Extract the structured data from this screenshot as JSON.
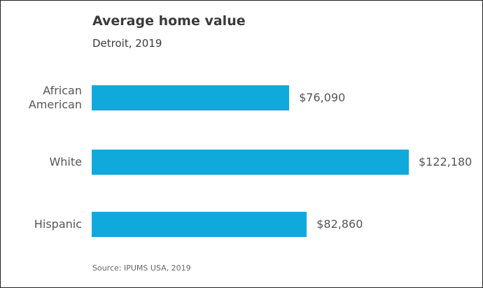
{
  "chart_data": {
    "type": "bar",
    "orientation": "horizontal",
    "title": "Average home value",
    "subtitle": "Detroit, 2019",
    "categories": [
      "African American",
      "White",
      "Hispanic"
    ],
    "values": [
      76090,
      122180,
      82860
    ],
    "value_labels": [
      "$76,090",
      "$122,180",
      "$82,860"
    ],
    "color": "#0fa9db",
    "source": "Source: IPUMS USA, 2019"
  }
}
